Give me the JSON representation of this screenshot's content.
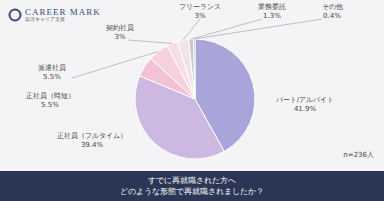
{
  "header": {
    "logo": "CAREER MARK",
    "tagline": "就活キャリア支援"
  },
  "chart_data": {
    "type": "pie",
    "title": "すでに再就職された方へ",
    "subtitle": "どのような形態で再就職されましたか？",
    "annotations": [
      "n=236人"
    ],
    "categories": [
      "パート/アルバイト",
      "正社員（フルタイム）",
      "正社員（時短）",
      "派遣社員",
      "契約社員",
      "フリーランス",
      "業務委託",
      "その他"
    ],
    "values": [
      41.9,
      39.4,
      5.5,
      5.5,
      3,
      3,
      1.3,
      0.4
    ],
    "value_labels": [
      "41.9%",
      "39.4%",
      "5.5%",
      "5.5%",
      "3%",
      "3%",
      "1.3%",
      "0.4%"
    ],
    "colors": [
      "#a9a4da",
      "#cdb8e2",
      "#f2c3d5",
      "#f5d0dd",
      "#f8dde6",
      "#f1e4e9",
      "#c8c8ce",
      "#9d9da5"
    ],
    "data_labels": true
  }
}
